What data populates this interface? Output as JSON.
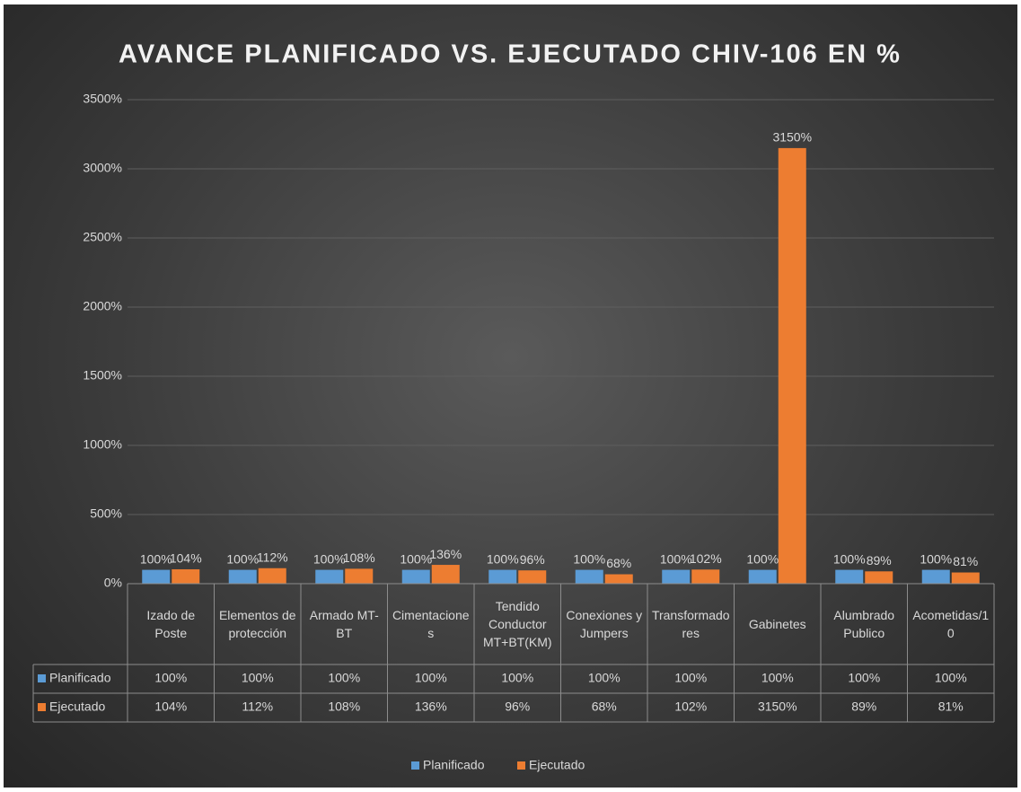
{
  "chart_data": {
    "type": "bar",
    "title": "AVANCE PLANIFICADO VS. EJECUTADO CHIV-106 EN %",
    "categories": [
      "Izado de Poste",
      "Elementos de protección",
      "Armado MT-BT",
      "Cimentaciones",
      "Tendido Conductor MT+BT(KM)",
      "Conexiones y Jumpers",
      "Transformadores",
      "Gabinetes",
      "Alumbrado Publico",
      "Acometidas/10"
    ],
    "series": [
      {
        "name": "Planificado",
        "color": "#5b9bd5",
        "values": [
          100,
          100,
          100,
          100,
          100,
          100,
          100,
          100,
          100,
          100
        ],
        "value_labels": [
          "100%",
          "100%",
          "100%",
          "100%",
          "100%",
          "100%",
          "100%",
          "100%",
          "100%",
          "100%"
        ]
      },
      {
        "name": "Ejecutado",
        "color": "#ed7d31",
        "values": [
          104,
          112,
          108,
          136,
          96,
          68,
          102,
          3150,
          89,
          81
        ],
        "value_labels": [
          "104%",
          "112%",
          "108%",
          "136%",
          "96%",
          "68%",
          "102%",
          "3150%",
          "89%",
          "81%"
        ]
      }
    ],
    "ylim": [
      0,
      3500
    ],
    "yticks": [
      {
        "value": 0,
        "label": "0%"
      },
      {
        "value": 500,
        "label": "500%"
      },
      {
        "value": 1000,
        "label": "1000%"
      },
      {
        "value": 1500,
        "label": "1500%"
      },
      {
        "value": 2000,
        "label": "2000%"
      },
      {
        "value": 2500,
        "label": "2500%"
      },
      {
        "value": 3000,
        "label": "3000%"
      },
      {
        "value": 3500,
        "label": "3500%"
      }
    ],
    "grid": true,
    "legend": "bottom",
    "data_table": true
  }
}
